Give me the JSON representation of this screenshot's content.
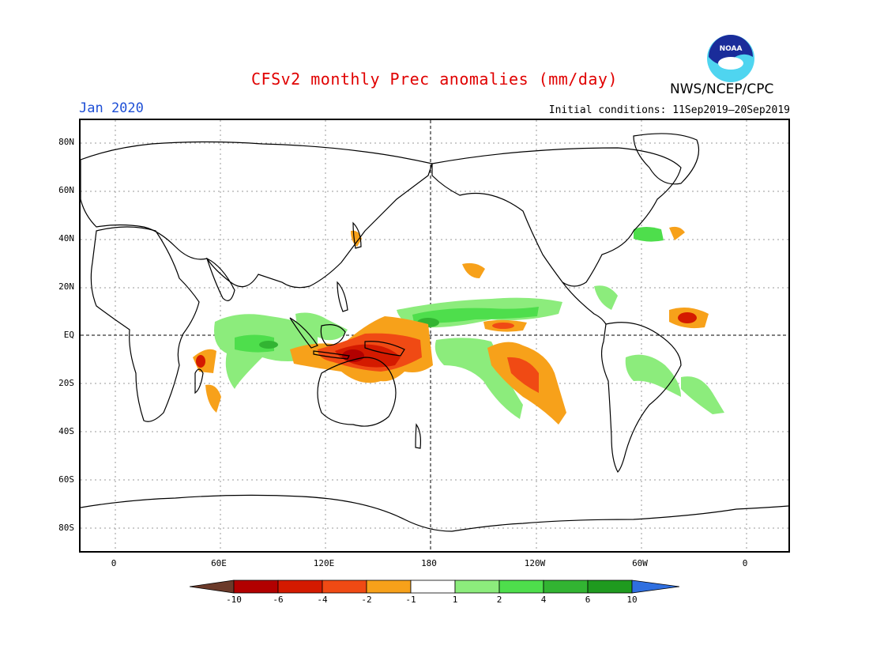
{
  "title": "CFSv2 monthly Prec anomalies (mm/day)",
  "month_label": "Jan 2020",
  "initial_conditions": "Initial conditions: 11Sep2019–20Sep2019",
  "agency": "NWS/NCEP/CPC",
  "logo": {
    "text": "NOAA",
    "icon": "noaa-logo-icon"
  },
  "lat_labels": [
    "80N",
    "60N",
    "40N",
    "20N",
    "EQ",
    "20S",
    "40S",
    "60S",
    "80S"
  ],
  "lon_labels": [
    "0",
    "60E",
    "120E",
    "180",
    "120W",
    "60W",
    "0"
  ],
  "colorbar": {
    "labels": [
      "-10",
      "-6",
      "-4",
      "-2",
      "-1",
      "1",
      "2",
      "4",
      "6",
      "10"
    ],
    "colors": [
      "#6b3a2a",
      "#b20000",
      "#d41a00",
      "#f04a14",
      "#f7a11a",
      "#ffffff",
      "#8cec7c",
      "#4ede4c",
      "#32b432",
      "#1f9a1f",
      "#2f6fe0"
    ]
  },
  "map_data": {
    "lon_range": [
      -20,
      360
    ],
    "lat_range": [
      -90,
      90
    ],
    "colors": {
      "green_light": "#8cec7c",
      "green": "#4ede4c",
      "green_dark": "#32b432",
      "orange": "#f7a11a",
      "red_orange": "#f04a14",
      "red": "#d41a00",
      "dark_red": "#b20000",
      "land_outline": "#000000",
      "grid": "#9a9a9a"
    }
  }
}
